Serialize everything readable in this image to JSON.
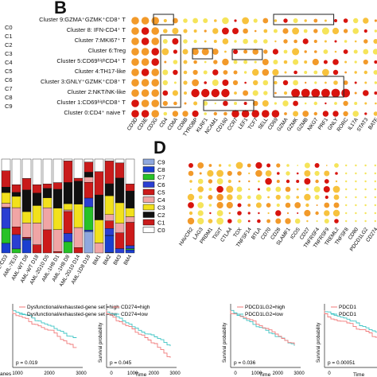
{
  "panels": {
    "b_letter": "B",
    "d_letter": "D"
  },
  "left_cluster_codes": [
    "C0",
    "C1",
    "C2",
    "C3",
    "C4",
    "C5",
    "C6",
    "C7",
    "C8",
    "C9"
  ],
  "panel_b": {
    "cluster_labels": [
      "Cluster 9:GZMA⁺GZMK⁺CD8⁺ T",
      "Cluster 8: IFN-CD4⁺ T",
      "Cluster 7:MKI67⁺ T",
      "Cluster 6:Treg",
      "Cluster 5:CD69ʰⁱᵍʰCD4⁺ T",
      "Cluster 4:TH17-like",
      "Cluster 3:GNLY⁺GZMK⁺CD8⁺ T",
      "Cluster 2:NKT/NK-like",
      "Cluster 1:CD69ʰⁱᵍʰCD8⁺ T",
      "Cluster 0:CD4⁺ naive T"
    ],
    "genes": [
      "CD3D",
      "CD3E",
      "CD3G",
      "CD4",
      "CD8A",
      "CD8B",
      "TYROBP",
      "KLRF1",
      "NCAM1",
      "CD160",
      "CCR7",
      "LEF1",
      "TCF7",
      "SELL",
      "CD69",
      "GZMA",
      "GZMK",
      "GZMB",
      "NKG7",
      "PRF1",
      "GNLY",
      "RORC",
      "IL17A",
      "STAT3",
      "BATF"
    ]
  },
  "panel_d": {
    "legend": [
      "C9",
      "C8",
      "C7",
      "C6",
      "C5",
      "C4",
      "C3",
      "C2",
      "C1",
      "C0"
    ],
    "legend_colors": [
      "#8fa8de",
      "#1a3fd0",
      "#27c227",
      "#2a3ed2",
      "#cc1a1a",
      "#f0a5a5",
      "#f2e11c",
      "#101010",
      "#c91b1b",
      "#ffffff"
    ],
    "genes": [
      "HAVCR2",
      "LAG3",
      "PRDM1",
      "TIGIT",
      "CTLA4",
      "TOX",
      "TNFSF14",
      "BTLA",
      "CD70",
      "CD28",
      "SLAMF1",
      "ICOS",
      "CD27",
      "TNFRSF4",
      "TNFRSF9",
      "TREML2",
      "TNFSF8",
      "CD80",
      "PDCD1LG2",
      "CD274"
    ]
  },
  "barplot": {
    "sample_labels": [
      "AML-CD3",
      "AML-7E10",
      "AML-WT D8",
      "AML-WT D18",
      "AML-2G10 D5",
      "AML-1H8 D1",
      "AML-1H8 D8",
      "AML-2G10 D14",
      "AML-1D8 D18",
      "BM1",
      "BM2",
      "BM3",
      "BM4"
    ]
  },
  "km": [
    {
      "legend": [
        "Dysfunctional/exhausted-gene set =high",
        "Dysfunctional/exhausted-gene set =low"
      ],
      "p": "p = 0.019",
      "xticks": [
        "1000",
        "2000",
        "3000"
      ],
      "xlabel": "",
      "ylabel": ""
    },
    {
      "legend": [
        "CD274=high",
        "CD274=low"
      ],
      "p": "p = 0.045",
      "xticks": [
        "0",
        "1000",
        "2000",
        "3000"
      ],
      "xlabel": "Time",
      "ylabel": "Survival probability"
    },
    {
      "legend": [
        "PDCD1LG2=high",
        "PDCD1LG2=low"
      ],
      "p": "p = 0.036",
      "xticks": [
        "0",
        "1000",
        "2000",
        "3000"
      ],
      "xlabel": "Time",
      "ylabel": "Survival probability"
    },
    {
      "legend": [
        "PDCD1",
        "PDCD1"
      ],
      "p": "p = 0.00051",
      "xticks": [
        "0",
        "1000"
      ],
      "xlabel": "Time",
      "ylabel": "Survival probability"
    }
  ],
  "km_extra": {
    "left_axis_word": "anes"
  },
  "colors": {
    "dot_low": "#f5e45a",
    "dot_mid": "#f29a2a",
    "dot_high": "#d8140e",
    "km_high": "#f07a7a",
    "km_low": "#3ec4c4"
  }
}
